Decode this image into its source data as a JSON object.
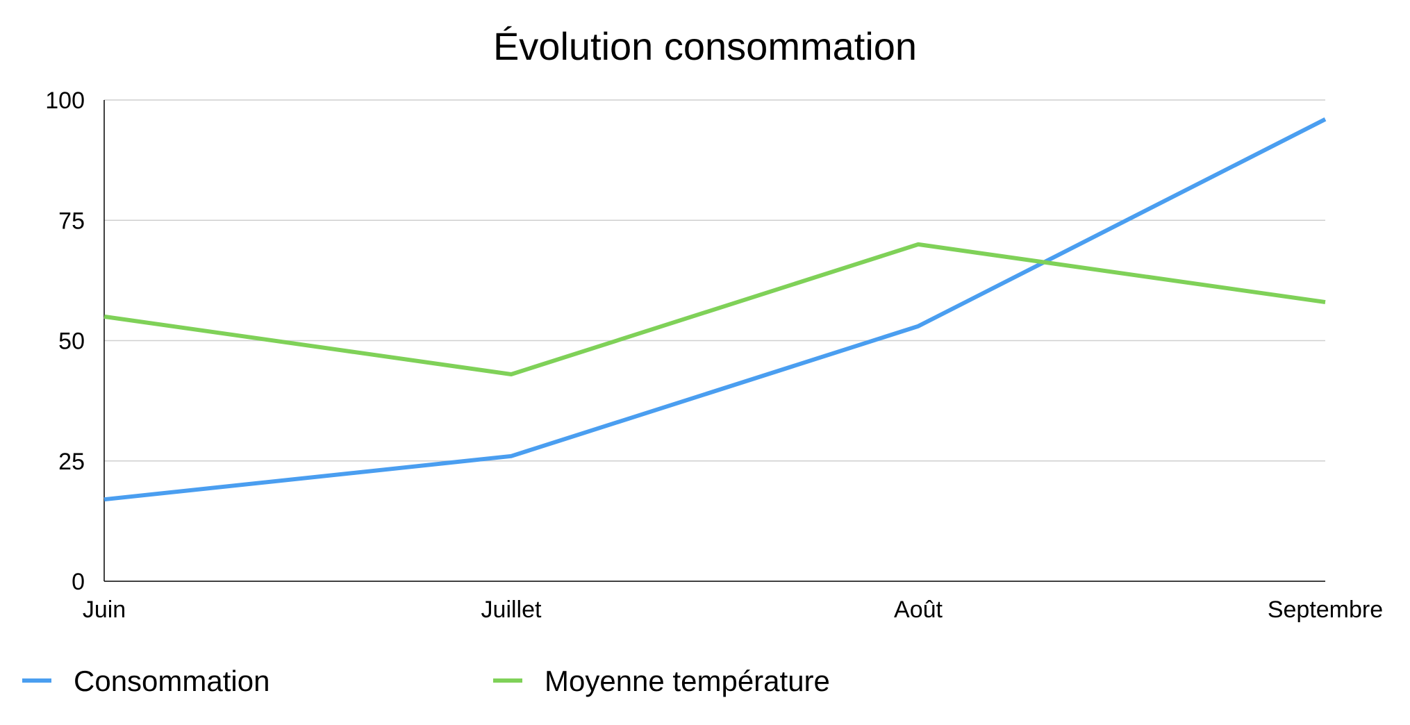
{
  "chart_data": {
    "type": "line",
    "title": "Évolution consommation",
    "xlabel": "",
    "ylabel": "",
    "categories": [
      "Juin",
      "Juillet",
      "Août",
      "Septembre"
    ],
    "ylim": [
      0,
      100
    ],
    "yticks": [
      0,
      25,
      50,
      75,
      100
    ],
    "grid": true,
    "legend_position": "bottom",
    "series": [
      {
        "name": "Consommation",
        "color": "#4a9ef0",
        "values": [
          17,
          26,
          53,
          96
        ]
      },
      {
        "name": "Moyenne température",
        "color": "#7fd158",
        "values": [
          55,
          43,
          70,
          58
        ]
      }
    ]
  }
}
